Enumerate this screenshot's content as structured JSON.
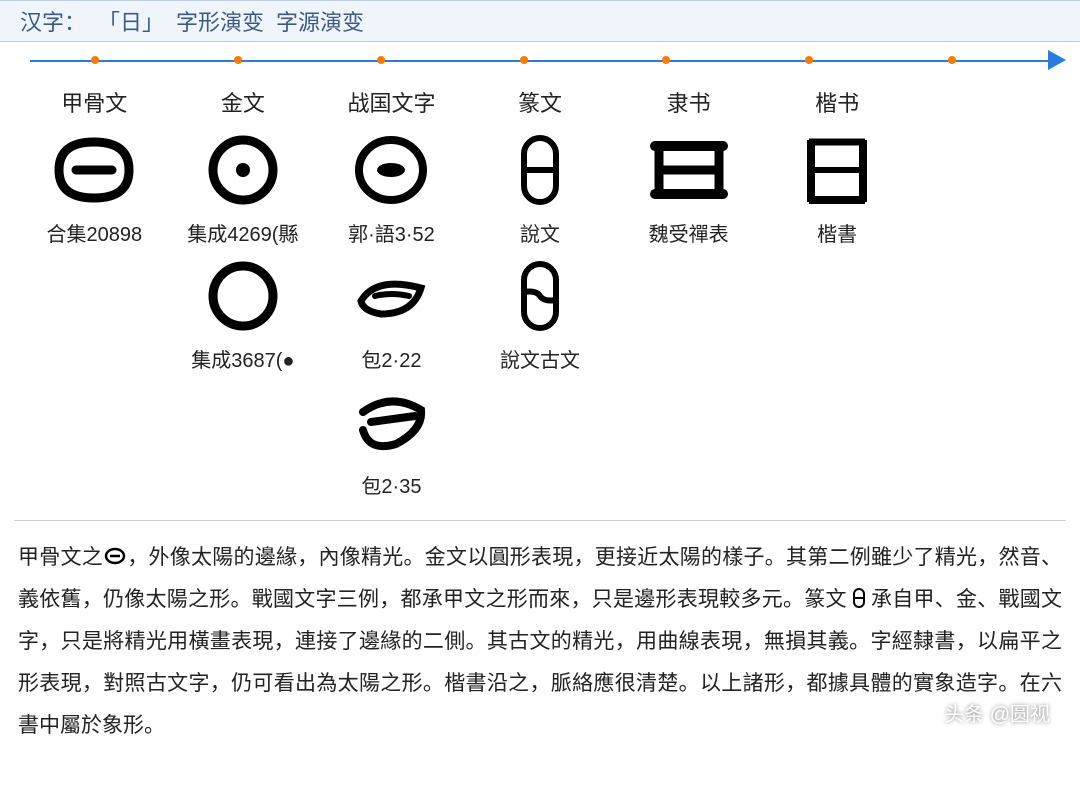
{
  "header": {
    "prefix": "汉字：",
    "char_bracket": "「日」",
    "title1": "字形演变",
    "title2": "字源演变"
  },
  "timeline": {
    "line_color": "#2a7be0",
    "dot_color": "#ff7a00",
    "dots_percent": [
      6,
      20,
      34,
      48,
      62,
      76,
      90
    ]
  },
  "script_types": [
    {
      "name": "甲骨文"
    },
    {
      "name": "金文"
    },
    {
      "name": "战国文字"
    },
    {
      "name": "篆文"
    },
    {
      "name": "隶书"
    },
    {
      "name": "楷书"
    },
    {
      "name": ""
    }
  ],
  "glyph_grid": {
    "rows": [
      {
        "cells": [
          {
            "svg": "oracle_dash",
            "label": "合集20898"
          },
          {
            "svg": "bronze_dot",
            "label": "集成4269(縣"
          },
          {
            "svg": "warring_eye",
            "label": "郭·語3·52"
          },
          {
            "svg": "seal_split",
            "label": "說文"
          },
          {
            "svg": "clerical_square",
            "label": "魏受禪表"
          },
          {
            "svg": "regular_ri",
            "label": "楷書"
          },
          {
            "svg": "",
            "label": ""
          }
        ]
      },
      {
        "cells": [
          {
            "svg": "",
            "label": ""
          },
          {
            "svg": "bronze_ring",
            "label": "集成3687(●"
          },
          {
            "svg": "warring_leaf",
            "label": "包2·22"
          },
          {
            "svg": "seal_swirl",
            "label": "說文古文"
          },
          {
            "svg": "",
            "label": ""
          },
          {
            "svg": "",
            "label": ""
          },
          {
            "svg": "",
            "label": ""
          }
        ]
      },
      {
        "cells": [
          {
            "svg": "",
            "label": ""
          },
          {
            "svg": "",
            "label": ""
          },
          {
            "svg": "warring_crescent",
            "label": "包2·35"
          },
          {
            "svg": "",
            "label": ""
          },
          {
            "svg": "",
            "label": ""
          },
          {
            "svg": "",
            "label": ""
          },
          {
            "svg": "",
            "label": ""
          }
        ]
      }
    ]
  },
  "explanation": {
    "p1a": "甲骨文之",
    "p1b": "，外像太陽的邊緣，內像精光。金文以圓形表現，更接近太陽的樣子。其第二例雖少了精光，然音、義依舊，仍像太陽之形。戰國文字三例，都承甲文之形而來，只是邊形表現較多元。篆文",
    "p1c": "承自甲、金、戰國文字，只是將精光用橫畫表現，連接了邊緣的二側。其古文的精光，用曲線表現，無損其義。字經隸書，以扁平之形表現，對照古文字，仍可看出為太陽之形。楷書沿之，脈絡應很清楚。以上諸形，都據具體的實象造字。在六書中屬於象形。"
  },
  "watermark": "头条 @圆视",
  "style": {
    "header_bg": "#f0f5fb",
    "header_border": "#b8d0e8",
    "header_text": "#3a5a8a",
    "body_text": "#222",
    "glyph_stroke": "#000000"
  }
}
